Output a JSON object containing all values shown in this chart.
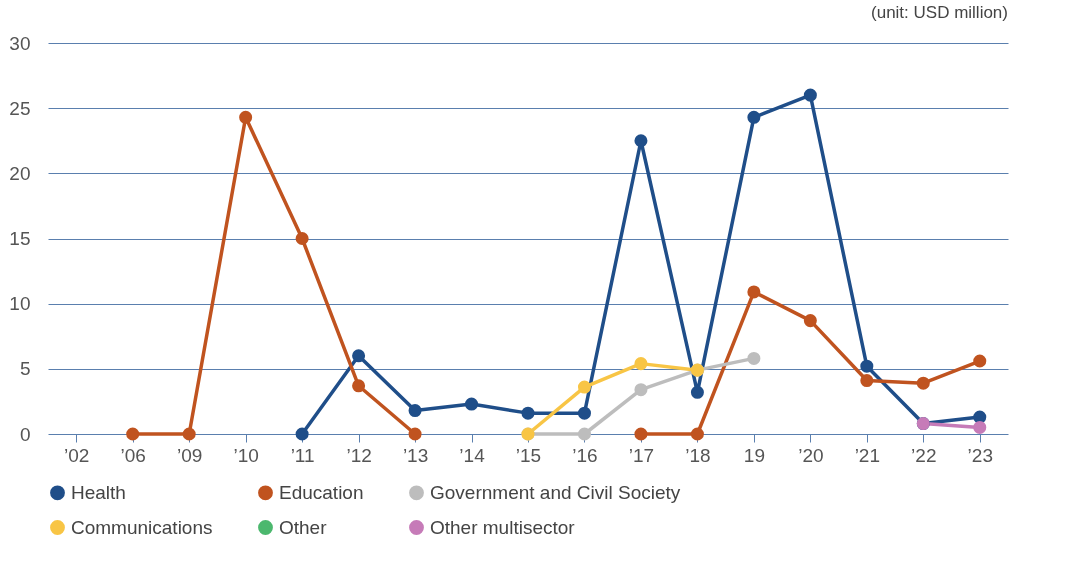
{
  "chart_data": {
    "type": "line",
    "categories": [
      "’02",
      "’06",
      "’09",
      "’10",
      "’11",
      "’12",
      "’13",
      "’14",
      "’15",
      "’16",
      "’17",
      "’18",
      "19",
      "’20",
      "’21",
      "’22",
      "’23"
    ],
    "series": [
      {
        "name": "Health",
        "color": "#1f4e89",
        "values": [
          null,
          null,
          null,
          null,
          0,
          6.0,
          1.8,
          2.3,
          1.6,
          1.6,
          22.5,
          3.2,
          24.3,
          26.0,
          5.2,
          0.8,
          1.3
        ]
      },
      {
        "name": "Education",
        "color": "#c0531f",
        "values": [
          null,
          0,
          0,
          24.3,
          15,
          3.7,
          0,
          null,
          null,
          null,
          0,
          0,
          10.9,
          8.7,
          4.1,
          3.9,
          5.6
        ]
      },
      {
        "name": "Government and Civil Society",
        "color": "#bdbdbd",
        "values": [
          null,
          null,
          null,
          null,
          null,
          null,
          null,
          null,
          0,
          0,
          3.4,
          4.9,
          5.8,
          null,
          null,
          null,
          null
        ]
      },
      {
        "name": "Communications",
        "color": "#f8c545",
        "values": [
          null,
          null,
          null,
          null,
          null,
          null,
          null,
          null,
          0,
          3.6,
          5.4,
          4.9,
          null,
          null,
          null,
          null,
          null
        ]
      },
      {
        "name": "Other",
        "color": "#4cb86e",
        "values": [
          null,
          null,
          null,
          null,
          null,
          null,
          null,
          null,
          null,
          null,
          null,
          null,
          null,
          null,
          null,
          null,
          null
        ]
      },
      {
        "name": "Other multisector",
        "color": "#c67bb8",
        "values": [
          null,
          null,
          null,
          null,
          null,
          null,
          null,
          null,
          null,
          null,
          null,
          null,
          null,
          null,
          null,
          0.8,
          0.5
        ]
      }
    ],
    "ylim": [
      0,
      30
    ],
    "yticks": [
      0,
      5,
      10,
      15,
      20,
      25,
      30
    ],
    "grid": "y",
    "legend": "bottom",
    "marker": "circle",
    "line_style": "solid",
    "annotations": [
      "(unit: USD million)"
    ]
  }
}
